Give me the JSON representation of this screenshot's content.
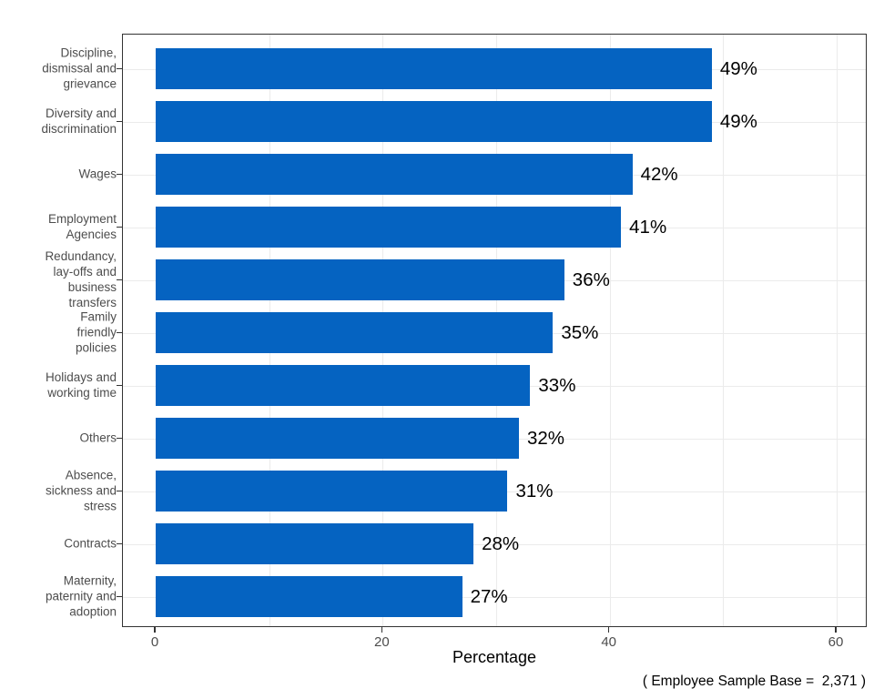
{
  "figure": {
    "background": "#ffffff",
    "caption": "( Employee Sample Base =  2,371 )"
  },
  "chart_data": {
    "type": "bar",
    "orientation": "horizontal",
    "title": "",
    "xlabel": "Percentage",
    "ylabel": "",
    "xlim": [
      0,
      63
    ],
    "x_ticks": [
      "0",
      "20",
      "40",
      "60"
    ],
    "x_tick_values": [
      0,
      20,
      40,
      60
    ],
    "gridlines_vertical_at": [
      10,
      20,
      30,
      40,
      50,
      60
    ],
    "grid": "vertical light-grey lines every 10, horizontal light-grey line at each category center",
    "legend_position": "none",
    "categories": [
      "Discipline, dismissal and grievance",
      "Diversity and discrimination",
      "Wages",
      "Employment Agencies",
      "Redundancy, lay-offs and business transfers",
      "Family friendly policies",
      "Holidays and working time",
      "Others",
      "Absence, sickness and stress",
      "Contracts",
      "Maternity, paternity and adoption"
    ],
    "category_lines": [
      [
        "Discipline,",
        "dismissal and",
        "grievance"
      ],
      [
        "Diversity and",
        "discrimination"
      ],
      [
        "Wages"
      ],
      [
        "Employment",
        "Agencies"
      ],
      [
        "Redundancy,",
        "lay-offs and",
        "business",
        "transfers"
      ],
      [
        "Family",
        "friendly",
        "policies"
      ],
      [
        "Holidays and",
        "working time"
      ],
      [
        "Others"
      ],
      [
        "Absence,",
        "sickness and",
        "stress"
      ],
      [
        "Contracts"
      ],
      [
        "Maternity,",
        "paternity and",
        "adoption"
      ]
    ],
    "values": [
      49,
      49,
      42,
      41,
      36,
      35,
      33,
      32,
      31,
      28,
      27
    ],
    "value_labels": [
      "49%",
      "49%",
      "42%",
      "41%",
      "36%",
      "35%",
      "33%",
      "32%",
      "31%",
      "28%",
      "27%"
    ]
  },
  "colors": {
    "bar": "#0563C1",
    "grid": "#ebebeb",
    "panel_border": "#333333",
    "tick_mark": "#333333",
    "axis_text": "#4d4d4d",
    "value_text": "#000000"
  }
}
